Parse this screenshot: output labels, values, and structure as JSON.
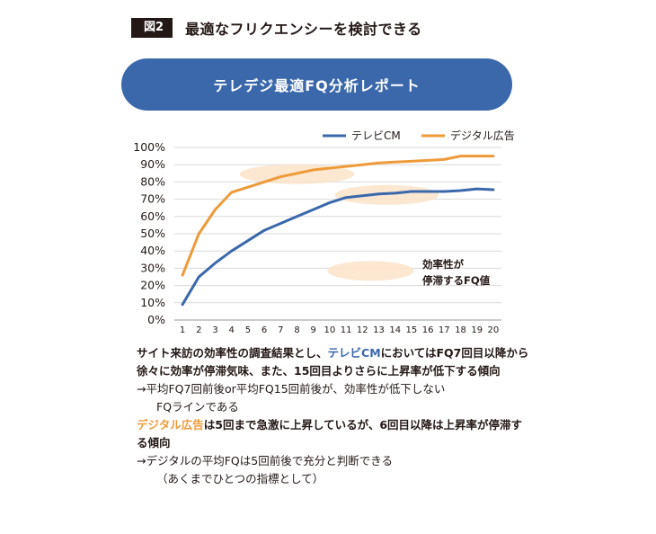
{
  "figure": {
    "label": "図2",
    "title": "最適なフリクエンシーを検討できる"
  },
  "banner": {
    "title": "テレデジ最適FQ分析レポート"
  },
  "chart_data": {
    "type": "line",
    "x": [
      1,
      2,
      3,
      4,
      5,
      6,
      7,
      8,
      9,
      10,
      11,
      12,
      13,
      14,
      15,
      16,
      17,
      18,
      19,
      20
    ],
    "series": [
      {
        "name": "テレビCM",
        "color": "#3a68ab",
        "values": [
          9,
          25,
          33,
          40,
          46,
          52,
          56,
          60,
          64,
          68,
          71,
          72,
          73,
          73.5,
          74.5,
          74.5,
          74.5,
          75,
          76,
          75.5
        ]
      },
      {
        "name": "デジタル広告",
        "color": "#ee9a3a",
        "values": [
          26,
          50,
          64,
          74,
          77,
          80,
          83,
          85,
          87,
          88,
          89,
          90,
          91,
          91.5,
          92,
          92.5,
          93,
          95,
          95,
          95
        ]
      }
    ],
    "yticks": [
      "0%",
      "10%",
      "20%",
      "30%",
      "40%",
      "50%",
      "60%",
      "70%",
      "80%",
      "90%",
      "100%"
    ],
    "ylim": [
      0,
      100
    ],
    "legend_position": "top-right",
    "annotation": {
      "line1": "効率性が",
      "line2": "停滞するFQ値"
    }
  },
  "notes": {
    "p1_a": "サイト来訪の効率性の調査結果とし、",
    "p1_hl": "テレビCM",
    "p1_b": "においてはFQ7回目以降から徐々に効率が停滞気味、また、15回目よりさらに上昇率が低下する傾向",
    "p2_a": "→平均FQ7回前後or平均FQ15回前後が、効率性が低下しない",
    "p2_b": "FQラインである",
    "p3_hl": "デジタル広告",
    "p3_a": "は5回まで急激に上昇しているが、6回目以降は上昇率が停滞する傾向",
    "p4_a": "→デジタルの平均FQは5回前後で充分と判断できる",
    "p4_b": "（あくまでひとつの指標として）"
  }
}
